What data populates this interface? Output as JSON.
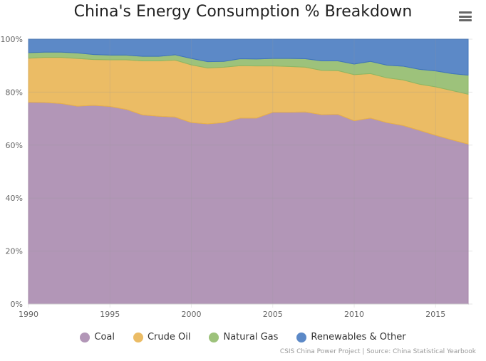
{
  "chart_data": {
    "type": "area",
    "stacking": "percent",
    "title": "China's Energy Consumption % Breakdown",
    "x": [
      1990,
      1991,
      1992,
      1993,
      1994,
      1995,
      1996,
      1997,
      1998,
      1999,
      2000,
      2001,
      2002,
      2003,
      2004,
      2005,
      2006,
      2007,
      2008,
      2009,
      2010,
      2011,
      2012,
      2013,
      2014,
      2015,
      2016,
      2017
    ],
    "x_ticks": [
      "1990",
      "1995",
      "2000",
      "2005",
      "2010",
      "2015"
    ],
    "y_ticks": [
      "0%",
      "20%",
      "40%",
      "60%",
      "80%",
      "100%"
    ],
    "ylim": [
      0,
      100
    ],
    "grid": true,
    "legend_position": "bottom",
    "series": [
      {
        "name": "Coal",
        "color": "#a584aa",
        "values": [
          76.2,
          76.1,
          75.7,
          74.7,
          75.0,
          74.6,
          73.5,
          71.4,
          70.9,
          70.6,
          68.5,
          68.0,
          68.5,
          70.2,
          70.2,
          72.4,
          72.4,
          72.5,
          71.5,
          71.6,
          69.2,
          70.2,
          68.5,
          67.4,
          65.6,
          63.7,
          62.0,
          60.4
        ]
      },
      {
        "name": "Crude Oil",
        "color": "#e8b04a",
        "values": [
          16.6,
          17.0,
          17.4,
          18.0,
          17.3,
          17.6,
          18.7,
          20.4,
          20.9,
          21.5,
          21.8,
          21.1,
          20.9,
          19.8,
          19.7,
          17.5,
          17.3,
          16.9,
          16.7,
          16.5,
          17.4,
          16.8,
          16.9,
          17.2,
          17.4,
          18.3,
          18.6,
          18.8
        ]
      },
      {
        "name": "Natural Gas",
        "color": "#8cb764",
        "values": [
          2.1,
          2.0,
          2.0,
          2.1,
          1.9,
          1.8,
          1.8,
          1.7,
          1.7,
          2.0,
          2.4,
          2.4,
          2.2,
          2.6,
          2.6,
          2.8,
          3.0,
          3.2,
          3.6,
          3.7,
          4.0,
          4.6,
          4.8,
          5.2,
          5.6,
          6.0,
          6.4,
          7.2
        ]
      },
      {
        "name": "Renewables & Other",
        "color": "#3f74bd",
        "values": [
          5.1,
          4.9,
          4.9,
          5.2,
          5.8,
          6.0,
          6.0,
          6.5,
          6.5,
          5.9,
          7.3,
          8.5,
          8.4,
          7.4,
          7.5,
          7.3,
          7.3,
          7.4,
          8.2,
          8.2,
          9.4,
          8.4,
          9.8,
          10.2,
          11.4,
          12.0,
          13.0,
          13.6
        ]
      }
    ]
  },
  "credit": "CSIS China Power Project | Source: China Statistical Yearbook",
  "menu_icon": "hamburger-icon"
}
